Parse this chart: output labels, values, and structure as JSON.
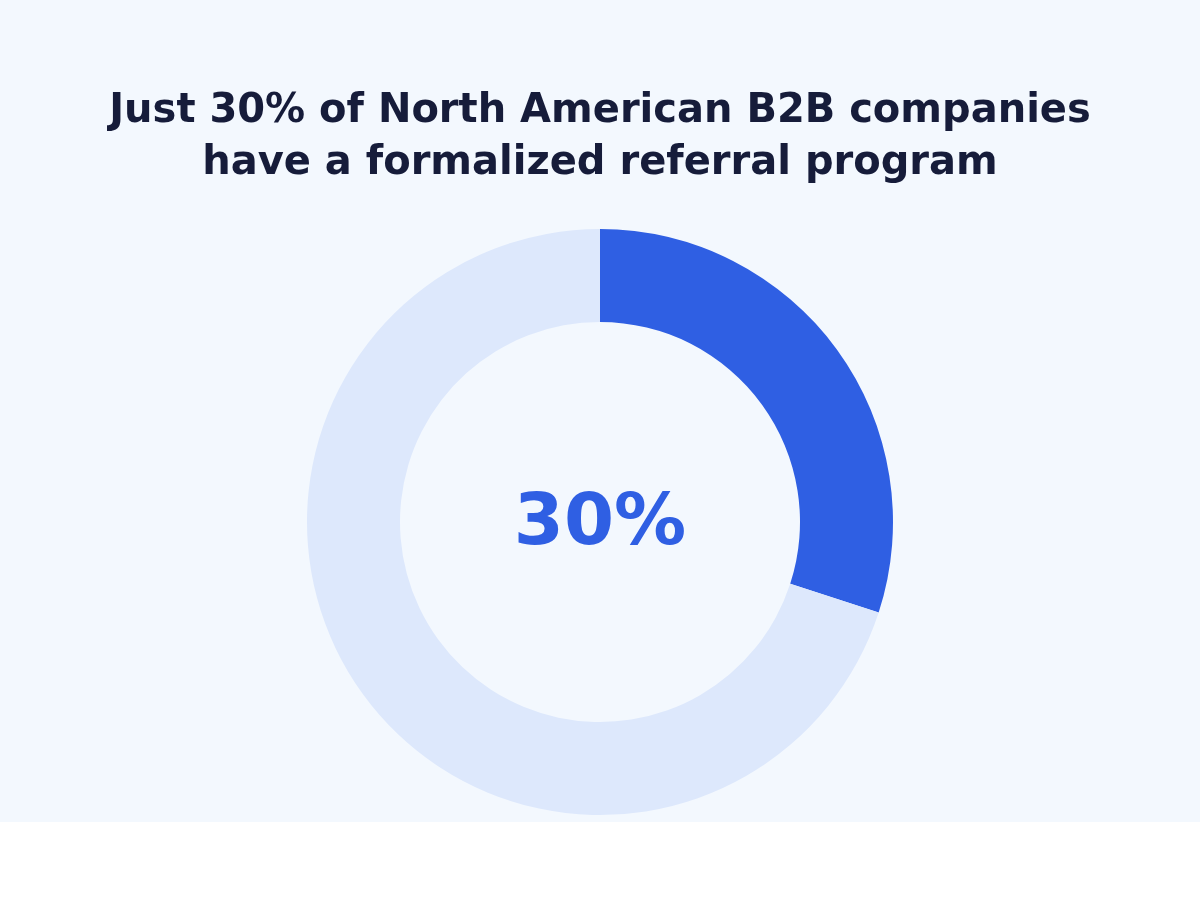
{
  "chart_data": {
    "type": "donut",
    "title": "Just 30% of North American B2B companies have a formalized referral program",
    "categories": [
      null,
      null
    ],
    "values": [
      30,
      70
    ],
    "colors": [
      "#2f5fe3",
      "#dde8fc"
    ],
    "value_labels": [
      "30%",
      null
    ],
    "legend": false
  }
}
